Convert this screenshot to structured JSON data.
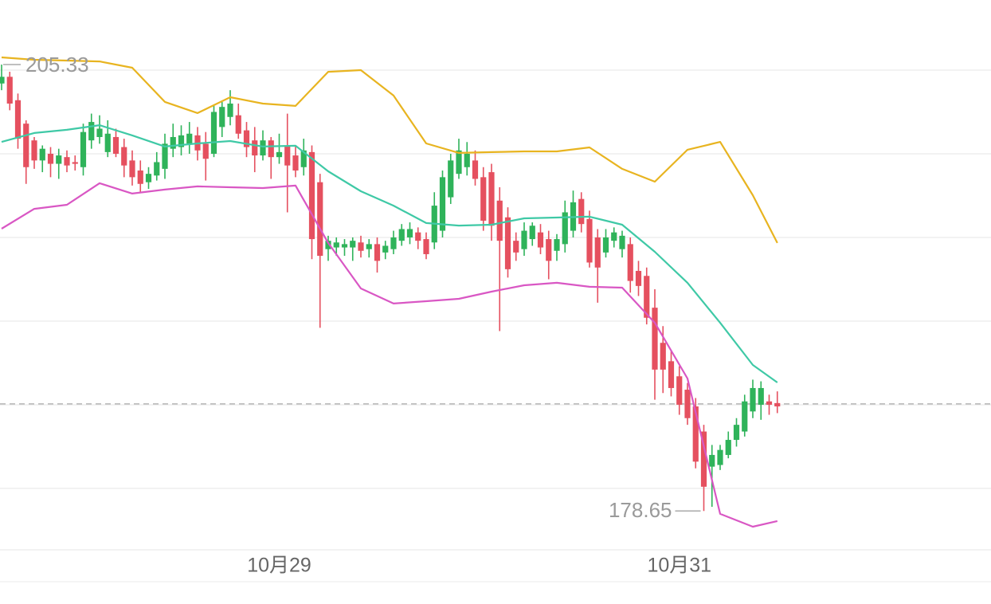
{
  "chart_data": {
    "type": "candlestick",
    "categories": [
      null,
      null,
      null,
      null,
      null,
      null,
      null,
      null,
      null,
      null,
      null,
      null,
      null,
      null,
      null,
      null,
      null,
      null,
      null,
      null,
      null,
      null,
      null,
      null,
      null,
      null,
      null,
      null,
      null,
      null,
      null,
      null,
      null,
      null,
      "10月29",
      null,
      null,
      null,
      null,
      null,
      null,
      null,
      null,
      null,
      null,
      null,
      null,
      null,
      null,
      null,
      null,
      null,
      null,
      null,
      null,
      null,
      null,
      null,
      null,
      null,
      null,
      null,
      null,
      null,
      null,
      null,
      null,
      null,
      null,
      null,
      null,
      null,
      null,
      null,
      null,
      null,
      null,
      null,
      null,
      null,
      null,
      null,
      null,
      "10月31",
      null,
      null,
      null,
      null,
      null,
      null,
      null,
      null,
      null,
      null,
      null,
      null
    ],
    "open": [
      204.2,
      204.6,
      203.2,
      201.8,
      200.8,
      199.6,
      200.0,
      199.4,
      199.8,
      199.5,
      199.2,
      200.8,
      201.0,
      200.1,
      201.0,
      200.4,
      199.6,
      199.0,
      198.3,
      198.7,
      199.1,
      200.3,
      200.4,
      200.6,
      201.1,
      200.6,
      200.0,
      201.6,
      202.2,
      202.3,
      201.4,
      200.8,
      199.9,
      200.8,
      199.8,
      200.5,
      199.9,
      199.2,
      200.1,
      198.3,
      194.3,
      194.4,
      194.4,
      194.4,
      194.7,
      194.3,
      194.6,
      194.1,
      194.3,
      194.8,
      195.0,
      195.3,
      194.9,
      194.7,
      195.4,
      197.4,
      198.8,
      199.2,
      199.6,
      198.6,
      198.9,
      197.2,
      196.2,
      194.8,
      194.3,
      194.9,
      195.3,
      194.9,
      194.2,
      194.6,
      195.4,
      197.3,
      196.1,
      195.0,
      194.1,
      194.8,
      194.3,
      194.6,
      193.0,
      192.7,
      190.8,
      188.7,
      187.6,
      186.7,
      185.9,
      184.9,
      183.4,
      181.3,
      181.4,
      182.0,
      182.9,
      183.4,
      184.6,
      185.0,
      185.2,
      185.1
    ],
    "high": [
      205.33,
      204.9,
      203.6,
      202.0,
      201.0,
      200.5,
      200.4,
      200.3,
      200.2,
      199.9,
      201.8,
      202.4,
      202.3,
      202.0,
      201.5,
      200.9,
      200.2,
      199.6,
      199.2,
      200.1,
      201.2,
      201.8,
      201.7,
      201.9,
      201.6,
      201.3,
      202.9,
      203.1,
      203.8,
      203.0,
      201.9,
      201.6,
      201.4,
      201.0,
      201.2,
      202.4,
      200.5,
      200.9,
      200.5,
      198.8,
      195.1,
      195.0,
      194.9,
      195.0,
      195.1,
      194.9,
      195.0,
      194.8,
      195.4,
      195.8,
      195.9,
      195.6,
      195.3,
      197.7,
      199.0,
      200.0,
      200.9,
      200.7,
      200.2,
      199.2,
      199.4,
      198.0,
      196.8,
      195.3,
      195.9,
      195.9,
      195.8,
      195.4,
      195.2,
      197.2,
      197.8,
      197.7,
      196.6,
      195.5,
      195.5,
      195.6,
      195.4,
      195.0,
      193.6,
      193.2,
      191.9,
      189.7,
      188.2,
      187.3,
      186.3,
      185.4,
      183.8,
      182.6,
      182.6,
      183.4,
      184.2,
      185.6,
      186.5,
      186.4,
      185.6,
      185.8
    ],
    "low": [
      203.8,
      202.6,
      200.3,
      198.2,
      199.1,
      198.9,
      198.6,
      198.5,
      198.9,
      199.0,
      198.7,
      200.3,
      200.6,
      199.8,
      199.8,
      198.6,
      198.1,
      197.7,
      197.9,
      198.4,
      198.5,
      199.8,
      199.9,
      200.0,
      199.6,
      198.4,
      199.8,
      201.0,
      201.7,
      200.9,
      199.8,
      198.9,
      199.6,
      198.5,
      199.4,
      196.5,
      198.6,
      198.7,
      193.7,
      189.6,
      193.6,
      193.9,
      193.9,
      193.6,
      193.8,
      193.8,
      192.9,
      193.7,
      194.0,
      194.5,
      194.6,
      194.3,
      193.7,
      194.3,
      195.0,
      197.0,
      198.5,
      198.7,
      198.1,
      195.4,
      194.8,
      189.4,
      192.6,
      193.6,
      193.9,
      194.5,
      194.0,
      192.5,
      193.6,
      194.1,
      195.0,
      195.3,
      193.2,
      191.1,
      193.8,
      194.4,
      193.8,
      191.7,
      191.5,
      189.8,
      185.3,
      185.7,
      185.5,
      184.4,
      183.8,
      181.2,
      178.65,
      178.9,
      181.1,
      181.8,
      182.5,
      183.1,
      184.2,
      184.1,
      184.4,
      184.5
    ],
    "close": [
      204.6,
      203.0,
      200.9,
      199.2,
      199.6,
      200.3,
      199.4,
      199.9,
      199.3,
      199.4,
      201.3,
      201.9,
      201.5,
      201.2,
      200.0,
      199.3,
      198.6,
      198.2,
      198.8,
      199.5,
      200.6,
      201.0,
      201.1,
      201.2,
      200.2,
      199.7,
      202.5,
      202.8,
      203.0,
      201.2,
      200.4,
      199.9,
      200.8,
      199.8,
      200.1,
      199.3,
      199.0,
      200.2,
      194.9,
      193.9,
      194.8,
      194.7,
      194.6,
      194.8,
      194.2,
      194.6,
      193.6,
      194.5,
      195.0,
      195.5,
      195.5,
      194.8,
      194.0,
      196.9,
      198.6,
      199.6,
      200.2,
      200.0,
      198.5,
      196.0,
      195.7,
      194.8,
      193.1,
      194.1,
      195.4,
      195.7,
      194.4,
      193.6,
      194.9,
      196.5,
      197.1,
      195.8,
      193.5,
      193.2,
      195.0,
      195.3,
      195.1,
      192.4,
      192.1,
      190.2,
      187.1,
      187.1,
      186.0,
      185.0,
      184.2,
      181.6,
      180.1,
      182.0,
      182.3,
      182.9,
      183.8,
      185.2,
      186.0,
      186.0,
      185.0,
      184.9
    ],
    "up_color": "#2fb35a",
    "down_color": "#e5505f",
    "series": [
      {
        "color": "#e8b420",
        "x": [
          0,
          4,
          8,
          12,
          16,
          20,
          24,
          28,
          32,
          36,
          40,
          44,
          48,
          52,
          56,
          60,
          64,
          68,
          72,
          76,
          80,
          84,
          88,
          92,
          95
        ],
        "values": [
          205.76,
          205.62,
          205.57,
          205.52,
          205.14,
          203.1,
          202.43,
          203.38,
          203.0,
          202.86,
          204.9,
          205.0,
          203.48,
          200.62,
          200.05,
          200.1,
          200.14,
          200.14,
          200.38,
          199.1,
          198.33,
          200.24,
          200.71,
          197.52,
          194.67
        ]
      },
      {
        "color": "#3fc9a6",
        "x": [
          0,
          4,
          8,
          12,
          16,
          20,
          24,
          28,
          32,
          36,
          40,
          44,
          48,
          52,
          56,
          60,
          64,
          68,
          72,
          76,
          80,
          84,
          88,
          92,
          95
        ],
        "values": [
          200.71,
          201.24,
          201.43,
          201.71,
          201.1,
          200.43,
          200.62,
          200.76,
          200.43,
          200.48,
          198.95,
          197.76,
          196.9,
          195.86,
          195.71,
          195.76,
          196.14,
          196.19,
          196.24,
          195.76,
          194.14,
          192.29,
          189.9,
          187.38,
          186.33
        ]
      },
      {
        "color": "#d957c4",
        "x": [
          0,
          4,
          8,
          12,
          16,
          20,
          24,
          28,
          32,
          36,
          40,
          44,
          48,
          52,
          56,
          60,
          64,
          68,
          72,
          76,
          80,
          84,
          88,
          92,
          95
        ],
        "values": [
          195.52,
          196.71,
          196.95,
          198.24,
          197.62,
          197.86,
          198.05,
          198.0,
          197.95,
          198.1,
          194.67,
          191.95,
          191.05,
          191.19,
          191.33,
          191.76,
          192.14,
          192.29,
          192.05,
          192.0,
          189.9,
          186.57,
          178.48,
          177.71,
          178.05
        ]
      }
    ],
    "max": {
      "value": 205.33,
      "x": 0
    },
    "min": {
      "value": 178.65,
      "x": 86
    },
    "price_line": 185.05,
    "ylim": [
      176.33,
      209.19
    ],
    "gridlines": [
      205,
      200,
      195,
      190,
      185,
      180
    ],
    "grid": true
  }
}
